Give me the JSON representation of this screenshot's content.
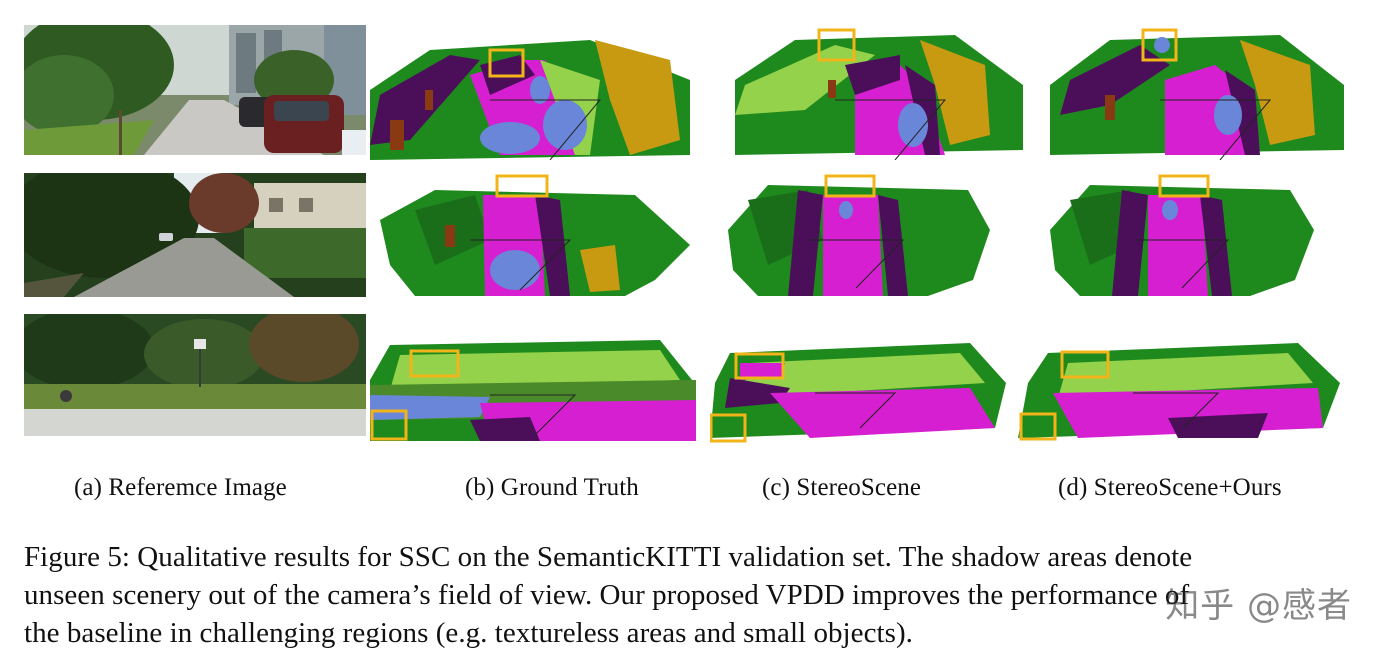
{
  "column_labels": {
    "a": "(a) Referemce Image",
    "b": "(b) Ground Truth",
    "c": "(c) StereoScene",
    "d": "(d) StereoScene+Ours"
  },
  "caption": {
    "line1": "Figure 5: Qualitative results for SSC on the SemanticKITTI validation set. The shadow areas denote",
    "line2": "unseen scenery out of the camera’s field of view. Our proposed VPDD improves the performance of",
    "line3": "the baseline in challenging regions (e.g. textureless areas and small objects)."
  },
  "watermark": "知乎 @感者",
  "colors": {
    "road": "#d61fd0",
    "sidewalk": "#4b0f5a",
    "vegetation": "#1e8a1e",
    "terrain": "#93d24a",
    "trunk": "#8a3a12",
    "car": "#6a86d8",
    "building": "#c89a12",
    "highlight_box": "#f2b418"
  }
}
